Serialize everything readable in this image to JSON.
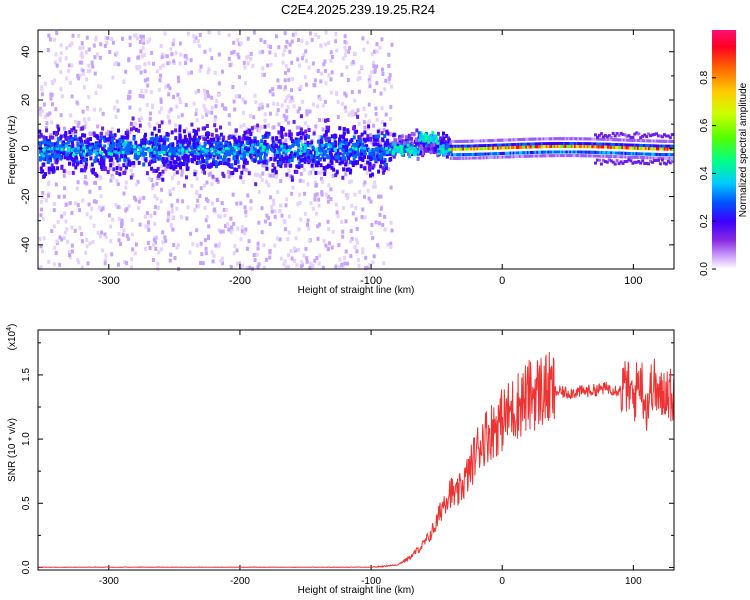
{
  "title": "C2E4.2025.239.19.25.R24",
  "chart_data": [
    {
      "type": "heatmap",
      "name": "spectrogram",
      "xlabel": "Height of straight line (km)",
      "ylabel": "Frequency (Hz)",
      "xlim": [
        -354,
        131
      ],
      "ylim": [
        -50,
        49
      ],
      "xticks": [
        -300,
        -200,
        -100,
        0,
        100
      ],
      "yticks": [
        -40,
        -20,
        0,
        20,
        40
      ],
      "colorbar": {
        "label": "Normalized spectral amplitude",
        "range": [
          0.0,
          1.0
        ],
        "ticks": [
          "0.0",
          "0.2",
          "0.4",
          "0.6",
          "0.8"
        ],
        "tick_values": [
          0.0,
          0.2,
          0.4,
          0.6,
          0.8
        ]
      },
      "regions": [
        {
          "x_range": [
            -354,
            -85
          ],
          "description": "broadband noise, blue/violet amplitude 0.1-0.3 centered near 0 Hz, faint scatter to +/-50 Hz"
        },
        {
          "x_range": [
            -85,
            -40
          ],
          "description": "transition, cyan/green amplitude 0.3-0.5 near 0 to 8 Hz"
        },
        {
          "x_range": [
            -40,
            131
          ],
          "description": "narrow carrier line near 0 Hz, amplitude 0.6-1.0"
        }
      ]
    },
    {
      "type": "line",
      "name": "snr",
      "xlabel": "Height of straight line (km)",
      "ylabel": "SNR (10 * v/v)",
      "yscale_label": "(x10",
      "yscale_exp": "4",
      "xlim": [
        -354,
        131
      ],
      "ylim": [
        -0.02,
        1.85
      ],
      "xticks": [
        -300,
        -200,
        -100,
        0,
        100
      ],
      "yticks": [
        0.0,
        0.5,
        1.0,
        1.5
      ],
      "ytick_labels": [
        "0.0",
        "0.5",
        "1.0",
        "1.5"
      ],
      "color": "#ee3333",
      "series": [
        {
          "name": "SNR",
          "x": [
            -354,
            -100,
            -80,
            -70,
            -60,
            -55,
            -50,
            -45,
            -40,
            -35,
            -30,
            -25,
            -20,
            -15,
            -10,
            -5,
            0,
            5,
            10,
            15,
            20,
            25,
            30,
            35,
            40,
            50,
            60,
            70,
            80,
            90,
            95,
            100,
            105,
            110,
            115,
            120,
            125,
            131
          ],
          "values": [
            0.0,
            0.0,
            0.02,
            0.08,
            0.18,
            0.25,
            0.35,
            0.5,
            0.6,
            0.55,
            0.65,
            0.75,
            0.9,
            1.0,
            1.05,
            1.1,
            1.15,
            1.2,
            1.25,
            1.3,
            1.33,
            1.36,
            1.38,
            1.38,
            1.37,
            1.36,
            1.37,
            1.38,
            1.4,
            1.38,
            1.42,
            1.3,
            1.5,
            1.25,
            1.45,
            1.3,
            1.4,
            1.3
          ]
        }
      ]
    }
  ]
}
